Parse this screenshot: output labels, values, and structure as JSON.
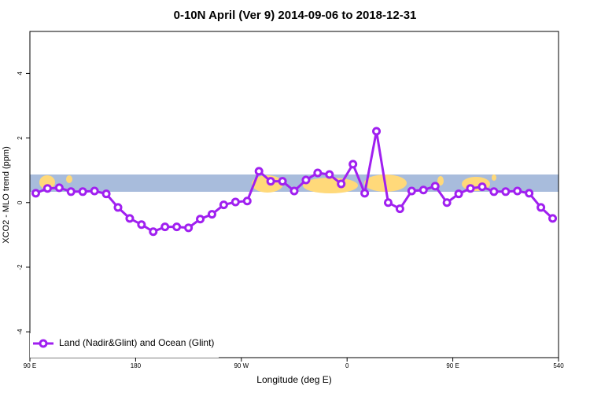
{
  "chart_data": {
    "type": "line",
    "title": "0-10N April (Ver 9)   2014-09-06 to 2018-12-31",
    "x_label": "Longitude (deg E)",
    "y_label": "XCO2 - MLO trend (ppm)",
    "x": [
      95,
      105,
      115,
      125,
      135,
      145,
      155,
      165,
      175,
      185,
      195,
      205,
      215,
      225,
      235,
      245,
      255,
      265,
      275,
      285,
      295,
      305,
      315,
      325,
      335,
      345,
      355,
      365,
      375,
      385,
      395,
      405,
      415,
      425,
      435,
      445,
      455,
      465,
      475,
      485,
      495,
      505,
      515,
      525,
      535
    ],
    "series": [
      {
        "name": "Land (Nadir&Glint) and Ocean (Glint)",
        "color": "#a020f0",
        "values": [
          0.29,
          0.44,
          0.46,
          0.34,
          0.34,
          0.36,
          0.27,
          -0.15,
          -0.49,
          -0.68,
          -0.9,
          -0.75,
          -0.75,
          -0.78,
          -0.51,
          -0.36,
          -0.07,
          0.02,
          0.05,
          0.97,
          0.66,
          0.66,
          0.36,
          0.7,
          0.92,
          0.87,
          0.58,
          1.19,
          0.29,
          2.21,
          0.0,
          -0.19,
          0.36,
          0.39,
          0.51,
          0.0,
          0.27,
          0.44,
          0.49,
          0.34,
          0.34,
          0.36,
          0.29,
          -0.15,
          -0.49
        ]
      }
    ],
    "xlim": [
      90,
      540
    ],
    "xticks": [
      {
        "value": 90,
        "label": "90 E"
      },
      180,
      {
        "value": 270,
        "label": "90 W"
      },
      {
        "value": 360,
        "label": "0"
      },
      {
        "value": 450,
        "label": "90 E"
      },
      540
    ],
    "ylim": [
      -4.8,
      5.3
    ],
    "yticks": [
      -4,
      -2,
      0,
      2,
      4
    ],
    "legend": "bottomleft"
  }
}
